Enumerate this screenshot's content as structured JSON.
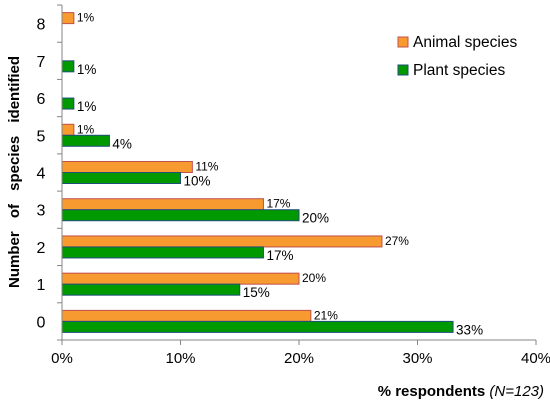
{
  "chart_data": {
    "type": "bar",
    "orientation": "horizontal",
    "categories": [
      "0",
      "1",
      "2",
      "3",
      "4",
      "5",
      "6",
      "7",
      "8"
    ],
    "series": [
      {
        "name": "Animal species",
        "color": "#F79A30",
        "stroke": "#C0504D",
        "values": [
          21,
          20,
          27,
          17,
          11,
          1,
          null,
          null,
          1
        ],
        "labels": [
          "21%",
          "20%",
          "27%",
          "17%",
          "11%",
          "1%",
          "",
          "",
          "1%"
        ]
      },
      {
        "name": "Plant species",
        "color": "#009A00",
        "stroke": "#1F4E79",
        "values": [
          33,
          15,
          17,
          20,
          10,
          4,
          1,
          1,
          null
        ],
        "labels": [
          "33%",
          "15%",
          "17%",
          "20%",
          "10%",
          "4%",
          "1%",
          "1%",
          ""
        ]
      }
    ],
    "xlim": [
      0,
      40
    ],
    "x_ticks": [
      "0%",
      "10%",
      "20%",
      "30%",
      "40%"
    ],
    "xlabel_main": "% respondents ",
    "xlabel_italic": "(N=123)",
    "ylabel": "Number of species identified",
    "legend_position": "top-right",
    "grid": false
  }
}
